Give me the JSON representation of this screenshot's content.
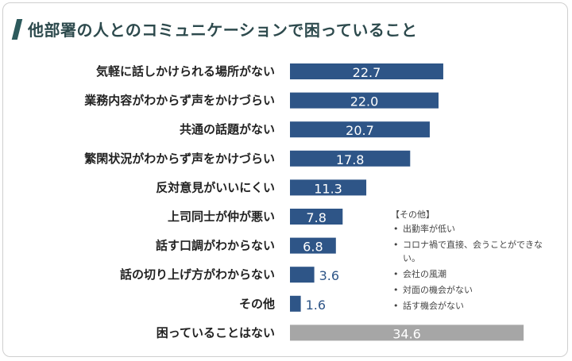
{
  "chart_data": {
    "type": "bar",
    "orientation": "horizontal",
    "title": "他部署の人とのコミュニケーションで困っていること",
    "categories": [
      "気軽に話しかけられる場所がない",
      "業務内容がわからず声をかけづらい",
      "共通の話題がない",
      "繁閑状況がわからず声をかけづらい",
      "反対意見がいいにくい",
      "上司同士が仲が悪い",
      "話す口調がわからない",
      "話の切り上げ方がわからない",
      "その他",
      "困っていることはない"
    ],
    "values": [
      22.7,
      22.0,
      20.7,
      17.8,
      11.3,
      7.8,
      6.8,
      3.6,
      1.6,
      34.6
    ],
    "value_labels": [
      "22.7",
      "22.0",
      "20.7",
      "17.8",
      "11.3",
      "7.8",
      "6.8",
      "3.6",
      "1.6",
      "34.6"
    ],
    "bar_colors": [
      "#2e5587",
      "#2e5587",
      "#2e5587",
      "#2e5587",
      "#2e5587",
      "#2e5587",
      "#2e5587",
      "#2e5587",
      "#2e5587",
      "#a6a6a6"
    ],
    "grid": false,
    "legend": false
  },
  "note": {
    "title": "【その他】",
    "items": [
      "出勤率が低い",
      "コロナ禍で直接、会うことができない。",
      "会社の風潮",
      "対面の機会がない",
      "話す機会がない"
    ]
  }
}
